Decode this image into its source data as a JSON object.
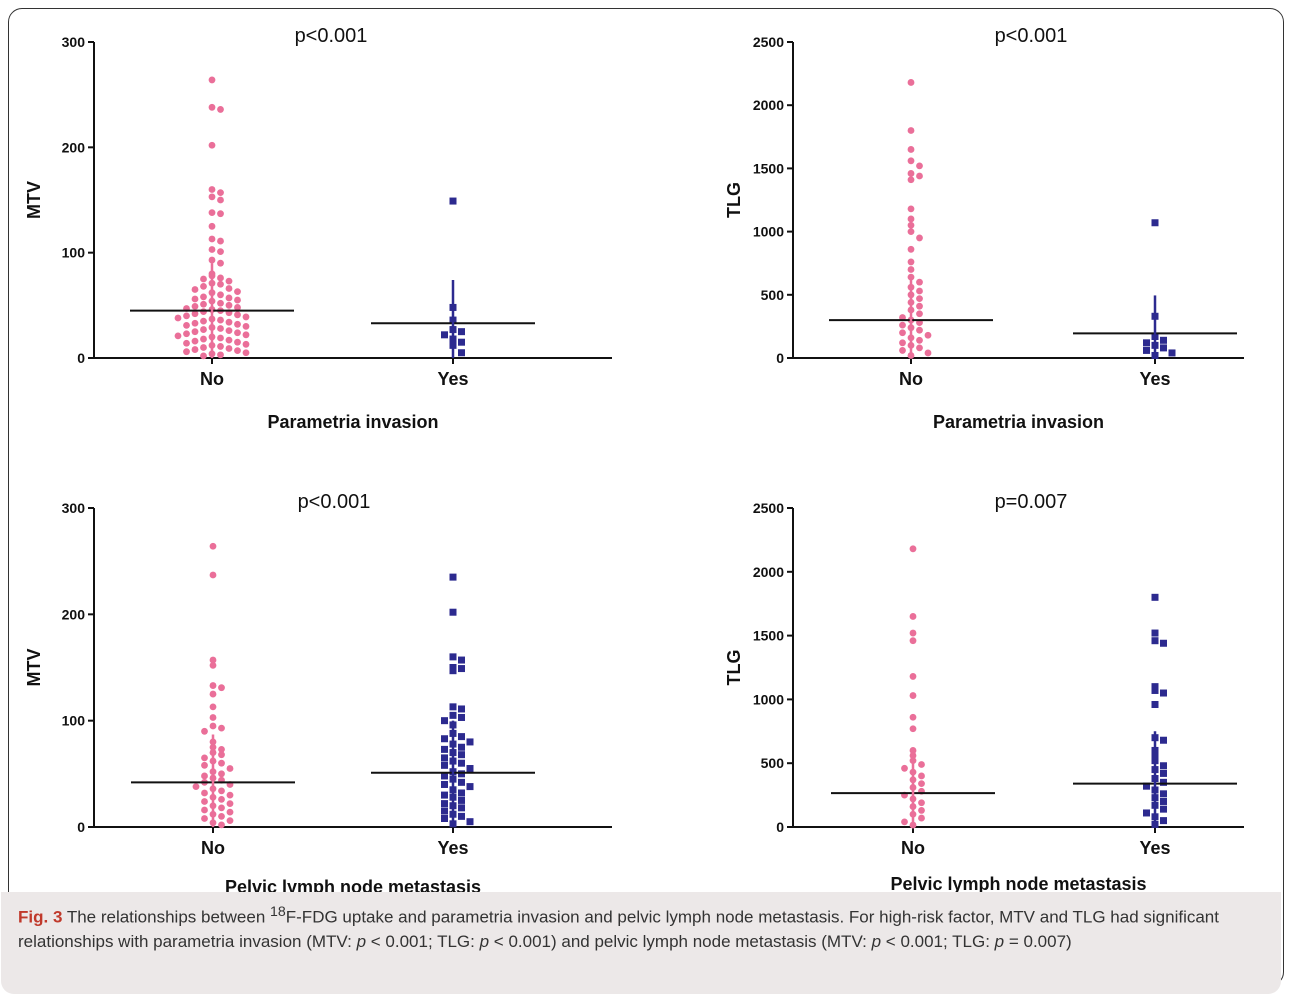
{
  "caption": {
    "label": "Fig. 3",
    "text_before_sup": " The relationships between ",
    "sup": "18",
    "text_after_sup": "F-FDG uptake and parametria invasion and pelvic lymph node metastasis. For high-risk factor, MTV and TLG had significant relationships with parametria invasion (MTV: ",
    "p_symbol": "p",
    "stat1": " < 0.001; TLG: ",
    "stat2": " < 0.001) and pelvic lymph node metastasis (MTV: ",
    "stat3": " < 0.001; TLG: ",
    "stat4": " = 0.007)"
  },
  "colors": {
    "no": "#ea6f99",
    "yes": "#2c2a8f",
    "axis": "#111111"
  },
  "chart_data": [
    {
      "type": "scatter",
      "title": "p<0.001",
      "xlabel": "Parametria invasion",
      "ylabel": "MTV",
      "categories": [
        "No",
        "Yes"
      ],
      "ylim": [
        0,
        300
      ],
      "yticks": [
        0,
        100,
        200,
        300
      ],
      "series": [
        {
          "name": "No",
          "mean": 45,
          "sd": 45,
          "values": [
            264,
            238,
            236,
            202,
            160,
            157,
            153,
            150,
            138,
            137,
            125,
            113,
            111,
            103,
            101,
            93,
            90,
            80,
            78,
            76,
            75,
            73,
            71,
            70,
            68,
            66,
            65,
            63,
            62,
            60,
            58,
            57,
            56,
            55,
            54,
            52,
            51,
            50,
            49,
            48,
            47,
            46,
            45,
            44,
            43,
            42,
            41,
            40,
            39,
            38,
            37,
            36,
            35,
            34,
            33,
            32,
            31,
            30,
            29,
            28,
            27,
            26,
            25,
            24,
            23,
            22,
            21,
            20,
            19,
            18,
            17,
            16,
            15,
            14,
            13,
            12,
            11,
            10,
            9,
            8,
            7,
            6,
            5,
            4,
            3,
            2
          ]
        },
        {
          "name": "Yes",
          "mean": 33,
          "sd": 41,
          "values": [
            149,
            48,
            36,
            27,
            25,
            22,
            18,
            15,
            12,
            5
          ]
        }
      ]
    },
    {
      "type": "scatter",
      "title": "p<0.001",
      "xlabel": "Parametria invasion",
      "ylabel": "TLG",
      "categories": [
        "No",
        "Yes"
      ],
      "ylim": [
        0,
        2500
      ],
      "yticks": [
        0,
        500,
        1000,
        1500,
        2000,
        2500
      ],
      "series": [
        {
          "name": "No",
          "mean": 300,
          "sd": 330,
          "values": [
            2180,
            1800,
            1650,
            1560,
            1520,
            1460,
            1440,
            1410,
            1180,
            1100,
            1050,
            1000,
            950,
            860,
            760,
            700,
            640,
            600,
            560,
            530,
            500,
            470,
            440,
            410,
            380,
            350,
            320,
            300,
            280,
            260,
            240,
            220,
            200,
            180,
            160,
            140,
            120,
            100,
            80,
            60,
            40,
            20
          ]
        },
        {
          "name": "Yes",
          "mean": 195,
          "sd": 300,
          "values": [
            1070,
            330,
            170,
            140,
            120,
            100,
            80,
            60,
            40,
            20
          ]
        }
      ]
    },
    {
      "type": "scatter",
      "title": "p<0.001",
      "xlabel": "Pelvic lymph node metastasis",
      "ylabel": "MTV",
      "categories": [
        "No",
        "Yes"
      ],
      "ylim": [
        0,
        300
      ],
      "yticks": [
        0,
        100,
        200,
        300
      ],
      "series": [
        {
          "name": "No",
          "mean": 42,
          "sd": 45,
          "values": [
            264,
            237,
            157,
            152,
            133,
            131,
            125,
            113,
            103,
            95,
            93,
            90,
            80,
            75,
            73,
            70,
            68,
            65,
            62,
            60,
            58,
            55,
            52,
            50,
            48,
            46,
            44,
            42,
            40,
            38,
            36,
            34,
            32,
            30,
            28,
            26,
            24,
            22,
            20,
            18,
            16,
            14,
            12,
            10,
            8,
            6,
            4,
            2
          ]
        },
        {
          "name": "Yes",
          "mean": 51,
          "sd": 49,
          "values": [
            235,
            202,
            160,
            157,
            150,
            149,
            147,
            113,
            111,
            105,
            103,
            100,
            96,
            88,
            85,
            83,
            80,
            78,
            75,
            73,
            70,
            68,
            65,
            62,
            60,
            58,
            55,
            52,
            50,
            48,
            45,
            42,
            40,
            38,
            35,
            32,
            30,
            28,
            25,
            22,
            20,
            18,
            15,
            12,
            10,
            8,
            5,
            3
          ]
        }
      ]
    },
    {
      "type": "scatter",
      "title": "p=0.007",
      "xlabel": "Pelvic lymph node metastasis",
      "ylabel": "TLG",
      "categories": [
        "No",
        "Yes"
      ],
      "ylim": [
        0,
        2500
      ],
      "yticks": [
        0,
        500,
        1000,
        1500,
        2000,
        2500
      ],
      "series": [
        {
          "name": "No",
          "mean": 265,
          "sd": 330,
          "values": [
            2180,
            1650,
            1520,
            1460,
            1180,
            1030,
            860,
            770,
            600,
            560,
            520,
            490,
            460,
            430,
            400,
            370,
            340,
            310,
            280,
            250,
            220,
            190,
            160,
            130,
            100,
            70,
            40,
            15
          ]
        },
        {
          "name": "Yes",
          "mean": 340,
          "sd": 410,
          "values": [
            1800,
            1520,
            1460,
            1440,
            1100,
            1070,
            1050,
            960,
            700,
            680,
            600,
            560,
            520,
            480,
            450,
            420,
            380,
            350,
            320,
            290,
            260,
            230,
            200,
            170,
            140,
            110,
            80,
            50,
            20
          ]
        }
      ]
    }
  ]
}
